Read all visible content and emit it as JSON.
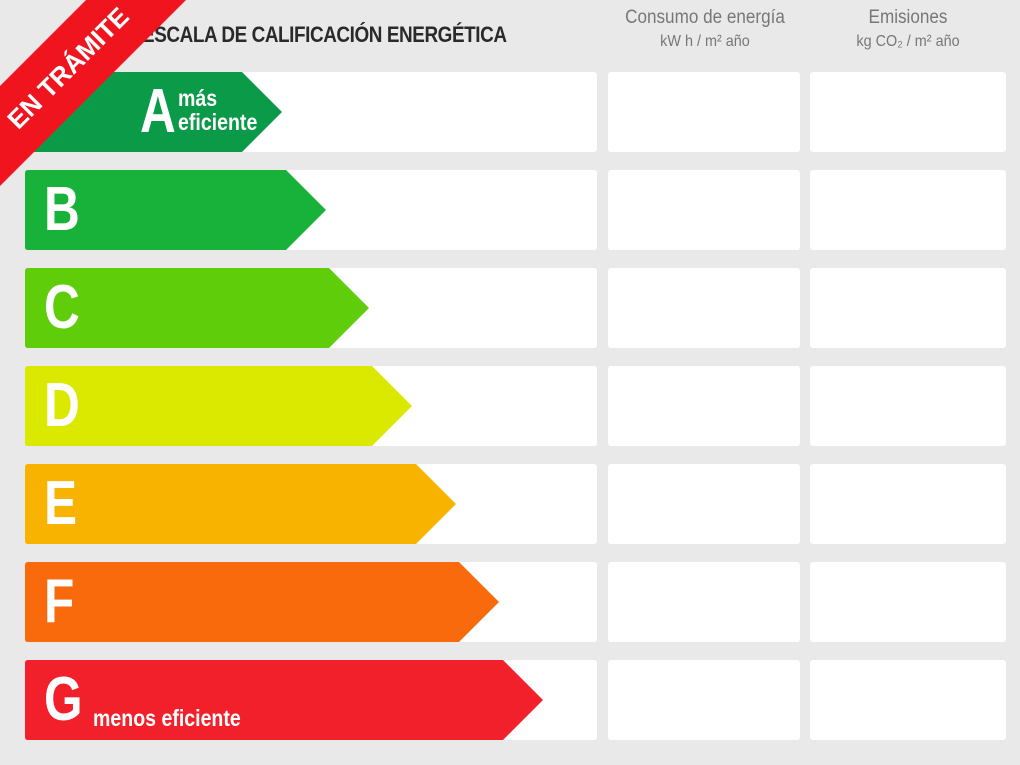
{
  "title": "ESCALA DE CALIFICACIÓN ENERGÉTICA",
  "columns": [
    {
      "label": "Consumo de energía",
      "unit": "kW h / m² año"
    },
    {
      "label": "Emisiones",
      "unit": "kg CO₂ / m² año"
    }
  ],
  "ratings": [
    {
      "letter": "A",
      "note": "más eficiente",
      "color": "#0a9a48"
    },
    {
      "letter": "B",
      "note": "",
      "color": "#18b23a"
    },
    {
      "letter": "C",
      "note": "",
      "color": "#5fcd0a"
    },
    {
      "letter": "D",
      "note": "",
      "color": "#dbe800"
    },
    {
      "letter": "E",
      "note": "",
      "color": "#f8b300"
    },
    {
      "letter": "F",
      "note": "",
      "color": "#f86a0c"
    },
    {
      "letter": "G",
      "note": "menos eficiente",
      "color": "#f2202a"
    }
  ],
  "ribbon": {
    "text": "EN TRÁMITE",
    "color": "#f0141e"
  }
}
